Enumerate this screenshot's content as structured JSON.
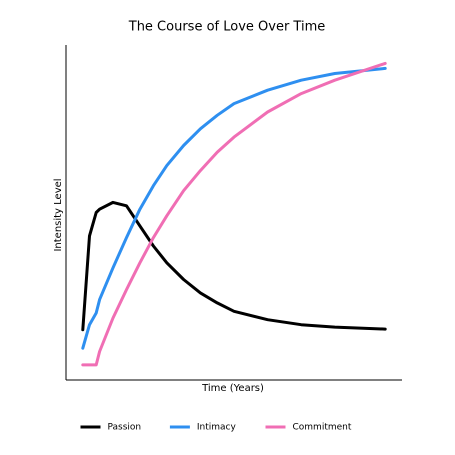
{
  "chart_data": {
    "type": "line",
    "title": "The Course of Love Over Time",
    "x_label": "Time (Years)",
    "y_label": "Intensity Level",
    "x": [
      0.5,
      0.7,
      0.9,
      1.0,
      1.4,
      1.8,
      2.2,
      2.6,
      3.0,
      3.5,
      4.0,
      4.5,
      5.0,
      6.0,
      7.0,
      8.0,
      9.5
    ],
    "xlim": [
      0,
      10
    ],
    "ylim": [
      0,
      10
    ],
    "grid": false,
    "legend": "bottom",
    "series": [
      {
        "name": "Passion",
        "color": "#000000",
        "values": [
          1.5,
          4.3,
          5.0,
          5.1,
          5.3,
          5.2,
          4.6,
          4.0,
          3.5,
          3.0,
          2.6,
          2.3,
          2.05,
          1.8,
          1.65,
          1.58,
          1.52
        ]
      },
      {
        "name": "Intimacy",
        "color": "#2e8ff0",
        "values": [
          0.95,
          1.65,
          2.0,
          2.4,
          3.35,
          4.25,
          5.1,
          5.8,
          6.4,
          7.0,
          7.5,
          7.9,
          8.25,
          8.65,
          8.95,
          9.15,
          9.3
        ]
      },
      {
        "name": "Commitment",
        "color": "#f06eb4",
        "values": [
          0.45,
          0.45,
          0.45,
          0.85,
          1.85,
          2.7,
          3.5,
          4.25,
          4.9,
          5.65,
          6.25,
          6.8,
          7.25,
          8.0,
          8.55,
          8.95,
          9.45
        ]
      }
    ]
  }
}
